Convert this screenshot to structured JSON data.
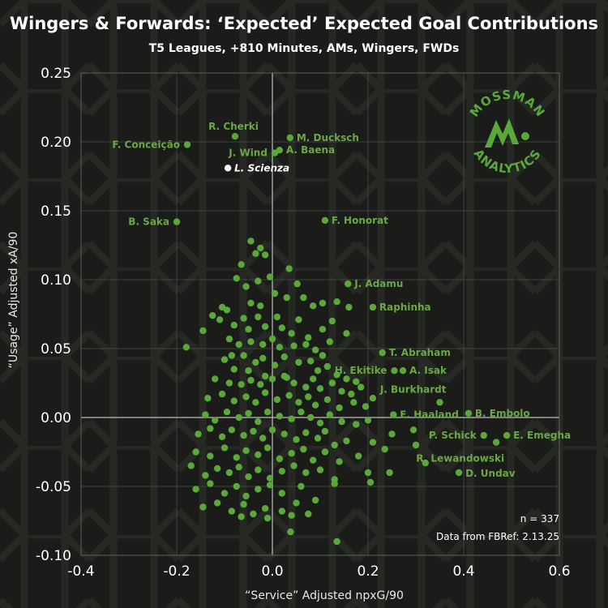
{
  "chart_data": {
    "type": "scatter",
    "title": "Wingers & Forwards: ‘Expected’ Expected Goal Contributions",
    "subtitle": "T5 Leagues, +810 Minutes, AMs, Wingers, FWDs",
    "xlabel": "“Service” Adjusted npxG/90",
    "ylabel": "“Usage” Adjusted xA/90",
    "xlim": [
      -0.4,
      0.6
    ],
    "ylim": [
      -0.1,
      0.25
    ],
    "x_ticks": [
      "-0.4",
      "-0.2",
      "0.0",
      "0.2",
      "0.4",
      "0.6"
    ],
    "y_ticks": [
      "0.25",
      "0.20",
      "0.15",
      "0.10",
      "0.05",
      "0.00",
      "-0.05",
      "-0.10"
    ],
    "grid": true,
    "point_color": "#5aa83a",
    "highlight_color": "#ffffff",
    "labeled_points": [
      {
        "name": "R. Cherki",
        "x": -0.078,
        "y": 0.204
      },
      {
        "name": "M. Ducksch",
        "x": 0.037,
        "y": 0.203
      },
      {
        "name": "F. Conceição",
        "x": -0.178,
        "y": 0.198
      },
      {
        "name": "J. Wind",
        "x": 0.005,
        "y": 0.192
      },
      {
        "name": "A. Baena",
        "x": 0.015,
        "y": 0.194
      },
      {
        "name": "L. Scienza",
        "x": -0.093,
        "y": 0.181,
        "highlight": true
      },
      {
        "name": "B. Saka",
        "x": -0.2,
        "y": 0.142
      },
      {
        "name": "F. Honorat",
        "x": 0.11,
        "y": 0.143
      },
      {
        "name": "J. Adamu",
        "x": 0.158,
        "y": 0.097
      },
      {
        "name": "Raphinha",
        "x": 0.21,
        "y": 0.08
      },
      {
        "name": "T. Abraham",
        "x": 0.23,
        "y": 0.047
      },
      {
        "name": "H. Ekitike",
        "x": 0.255,
        "y": 0.034
      },
      {
        "name": "A. Isak",
        "x": 0.273,
        "y": 0.034
      },
      {
        "name": "J. Burkhardt",
        "x": 0.35,
        "y": 0.011
      },
      {
        "name": "E. Haaland",
        "x": 0.253,
        "y": 0.002
      },
      {
        "name": "B. Embolo",
        "x": 0.41,
        "y": 0.003
      },
      {
        "name": "P. Schick",
        "x": 0.442,
        "y": -0.013
      },
      {
        "name": "E. Emegha",
        "x": 0.49,
        "y": -0.013
      },
      {
        "name": "R. Lewandowski",
        "x": 0.468,
        "y": -0.018
      },
      {
        "name": "D. Undav",
        "x": 0.39,
        "y": -0.04
      }
    ],
    "unlabeled_points": [
      [
        -0.045,
        0.128
      ],
      [
        -0.035,
        0.119
      ],
      [
        -0.025,
        0.123
      ],
      [
        -0.065,
        0.111
      ],
      [
        -0.015,
        0.118
      ],
      [
        -0.075,
        0.101
      ],
      [
        -0.055,
        0.095
      ],
      [
        -0.03,
        0.099
      ],
      [
        -0.005,
        0.102
      ],
      [
        0.035,
        0.108
      ],
      [
        0.052,
        0.097
      ],
      [
        -0.105,
        0.08
      ],
      [
        -0.095,
        0.078
      ],
      [
        -0.045,
        0.083
      ],
      [
        -0.025,
        0.081
      ],
      [
        0.005,
        0.09
      ],
      [
        0.03,
        0.087
      ],
      [
        0.065,
        0.087
      ],
      [
        0.085,
        0.081
      ],
      [
        0.105,
        0.083
      ],
      [
        0.135,
        0.084
      ],
      [
        0.16,
        0.08
      ],
      [
        -0.145,
        0.063
      ],
      [
        -0.125,
        0.074
      ],
      [
        -0.11,
        0.071
      ],
      [
        -0.08,
        0.067
      ],
      [
        -0.06,
        0.072
      ],
      [
        -0.05,
        0.064
      ],
      [
        -0.03,
        0.073
      ],
      [
        -0.015,
        0.066
      ],
      [
        0.01,
        0.073
      ],
      [
        0.02,
        0.065
      ],
      [
        0.04,
        0.061
      ],
      [
        0.055,
        0.071
      ],
      [
        0.075,
        0.058
      ],
      [
        0.105,
        0.064
      ],
      [
        0.125,
        0.07
      ],
      [
        0.155,
        0.061
      ],
      [
        -0.18,
        0.051
      ],
      [
        -0.09,
        0.057
      ],
      [
        -0.07,
        0.053
      ],
      [
        -0.045,
        0.055
      ],
      [
        -0.02,
        0.053
      ],
      [
        0.0,
        0.057
      ],
      [
        0.015,
        0.051
      ],
      [
        0.045,
        0.052
      ],
      [
        0.07,
        0.053
      ],
      [
        0.09,
        0.049
      ],
      [
        0.12,
        0.055
      ],
      [
        -0.1,
        0.042
      ],
      [
        -0.08,
        0.035
      ],
      [
        -0.06,
        0.045
      ],
      [
        -0.035,
        0.04
      ],
      [
        -0.02,
        0.043
      ],
      [
        0.005,
        0.038
      ],
      [
        0.025,
        0.044
      ],
      [
        0.055,
        0.04
      ],
      [
        0.08,
        0.041
      ],
      [
        0.095,
        0.034
      ],
      [
        0.115,
        0.037
      ],
      [
        0.135,
        0.031
      ],
      [
        0.155,
        0.028
      ],
      [
        0.175,
        0.026
      ],
      [
        -0.12,
        0.028
      ],
      [
        -0.09,
        0.025
      ],
      [
        -0.065,
        0.024
      ],
      [
        -0.045,
        0.027
      ],
      [
        -0.025,
        0.024
      ],
      [
        0.0,
        0.028
      ],
      [
        0.03,
        0.029
      ],
      [
        0.045,
        0.025
      ],
      [
        0.07,
        0.022
      ],
      [
        0.085,
        0.028
      ],
      [
        0.1,
        0.021
      ],
      [
        0.125,
        0.025
      ],
      [
        0.145,
        0.019
      ],
      [
        0.165,
        0.017
      ],
      [
        0.185,
        0.022
      ],
      [
        0.21,
        0.014
      ],
      [
        -0.135,
        0.014
      ],
      [
        -0.105,
        0.017
      ],
      [
        -0.08,
        0.012
      ],
      [
        -0.055,
        0.015
      ],
      [
        -0.035,
        0.011
      ],
      [
        -0.015,
        0.018
      ],
      [
        0.01,
        0.013
      ],
      [
        0.035,
        0.016
      ],
      [
        0.055,
        0.011
      ],
      [
        0.075,
        0.015
      ],
      [
        0.09,
        0.009
      ],
      [
        0.115,
        0.013
      ],
      [
        0.14,
        0.007
      ],
      [
        0.17,
        0.011
      ],
      [
        0.195,
        0.008
      ],
      [
        -0.14,
        0.002
      ],
      [
        -0.12,
        -0.002
      ],
      [
        -0.095,
        0.004
      ],
      [
        -0.07,
        0.0
      ],
      [
        -0.05,
        0.003
      ],
      [
        -0.03,
        -0.003
      ],
      [
        -0.01,
        0.004
      ],
      [
        0.015,
        0.001
      ],
      [
        0.04,
        -0.001
      ],
      [
        0.06,
        0.004
      ],
      [
        0.08,
        0.0
      ],
      [
        0.1,
        -0.004
      ],
      [
        0.12,
        0.002
      ],
      [
        0.145,
        -0.003
      ],
      [
        0.175,
        -0.005
      ],
      [
        0.2,
        -0.002
      ],
      [
        -0.155,
        -0.012
      ],
      [
        -0.13,
        -0.008
      ],
      [
        -0.105,
        -0.014
      ],
      [
        -0.085,
        -0.009
      ],
      [
        -0.06,
        -0.013
      ],
      [
        -0.04,
        -0.01
      ],
      [
        -0.02,
        -0.015
      ],
      [
        0.0,
        -0.009
      ],
      [
        0.025,
        -0.012
      ],
      [
        0.05,
        -0.016
      ],
      [
        0.07,
        -0.011
      ],
      [
        0.095,
        -0.015
      ],
      [
        0.11,
        -0.01
      ],
      [
        0.13,
        -0.02
      ],
      [
        0.155,
        -0.017
      ],
      [
        0.21,
        -0.018
      ],
      [
        0.25,
        -0.012
      ],
      [
        0.295,
        -0.009
      ],
      [
        -0.16,
        -0.025
      ],
      [
        -0.13,
        -0.028
      ],
      [
        -0.1,
        -0.022
      ],
      [
        -0.075,
        -0.029
      ],
      [
        -0.055,
        -0.024
      ],
      [
        -0.03,
        -0.027
      ],
      [
        -0.01,
        -0.022
      ],
      [
        0.015,
        -0.03
      ],
      [
        0.04,
        -0.026
      ],
      [
        0.065,
        -0.023
      ],
      [
        0.085,
        -0.031
      ],
      [
        0.11,
        -0.025
      ],
      [
        0.14,
        -0.032
      ],
      [
        0.18,
        -0.028
      ],
      [
        0.235,
        -0.023
      ],
      [
        0.3,
        -0.02
      ],
      [
        -0.17,
        -0.035
      ],
      [
        -0.14,
        -0.042
      ],
      [
        -0.115,
        -0.037
      ],
      [
        -0.09,
        -0.04
      ],
      [
        -0.07,
        -0.036
      ],
      [
        -0.05,
        -0.043
      ],
      [
        -0.03,
        -0.038
      ],
      [
        -0.005,
        -0.044
      ],
      [
        0.02,
        -0.039
      ],
      [
        0.045,
        -0.035
      ],
      [
        0.07,
        -0.04
      ],
      [
        0.1,
        -0.038
      ],
      [
        0.13,
        -0.045
      ],
      [
        0.2,
        -0.04
      ],
      [
        0.245,
        -0.04
      ],
      [
        0.32,
        -0.033
      ],
      [
        -0.16,
        -0.052
      ],
      [
        -0.13,
        -0.048
      ],
      [
        -0.1,
        -0.055
      ],
      [
        -0.075,
        -0.05
      ],
      [
        -0.055,
        -0.057
      ],
      [
        -0.03,
        -0.052
      ],
      [
        -0.005,
        -0.049
      ],
      [
        0.02,
        -0.055
      ],
      [
        0.06,
        -0.05
      ],
      [
        0.09,
        -0.06
      ],
      [
        0.13,
        -0.048
      ],
      [
        0.205,
        -0.047
      ],
      [
        -0.145,
        -0.065
      ],
      [
        -0.115,
        -0.062
      ],
      [
        -0.085,
        -0.068
      ],
      [
        -0.06,
        -0.063
      ],
      [
        -0.04,
        -0.07
      ],
      [
        -0.015,
        -0.066
      ],
      [
        0.02,
        -0.068
      ],
      [
        0.05,
        -0.062
      ],
      [
        0.075,
        -0.07
      ],
      [
        -0.065,
        -0.072
      ],
      [
        -0.01,
        -0.073
      ],
      [
        0.04,
        -0.071
      ],
      [
        0.038,
        -0.083
      ],
      [
        0.135,
        -0.09
      ],
      [
        -0.05,
        0.034
      ],
      [
        0.025,
        0.03
      ],
      [
        -0.085,
        0.045
      ],
      [
        0.105,
        0.045
      ],
      [
        -0.015,
        0.03
      ]
    ]
  },
  "footer": {
    "n_label": "n = 337",
    "source": "Data from FBRef: 2.13.25"
  },
  "logo": {
    "top_text": "MOSSMAN",
    "bottom_text": "ANALYTICS"
  }
}
